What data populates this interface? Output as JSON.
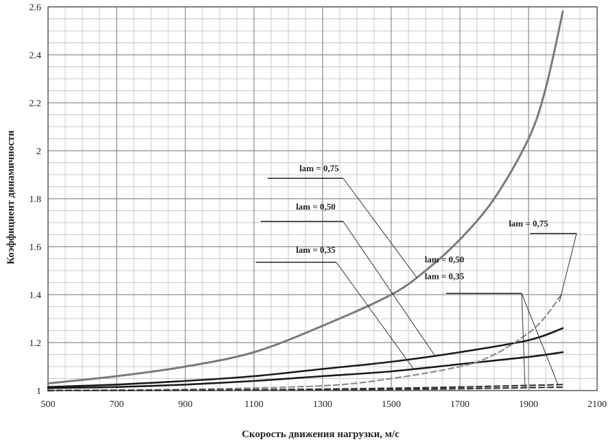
{
  "chart_data": {
    "type": "line",
    "title": "",
    "xlabel": "Скорость движения нагрузки, м/с",
    "ylabel": "Коэффициент динамичности",
    "xlim": [
      500,
      2100
    ],
    "ylim": [
      1,
      2.6
    ],
    "x_ticks": [
      500,
      700,
      900,
      1100,
      1300,
      1500,
      1700,
      1900,
      2100
    ],
    "y_ticks": [
      {
        "value": 1.0,
        "label": "1"
      },
      {
        "value": 1.2,
        "label": "1.2"
      },
      {
        "value": 1.4,
        "label": "1.4"
      },
      {
        "value": 1.6,
        "label": "1.6"
      },
      {
        "value": 1.8,
        "label": "1.8"
      },
      {
        "value": 2.0,
        "label": "2"
      },
      {
        "value": 2.2,
        "label": "2.2"
      },
      {
        "value": 2.4,
        "label": "2.4"
      },
      {
        "value": 2.6,
        "label": "2.6"
      }
    ],
    "grid": true,
    "x_minor_step": 50,
    "y_minor_step": 0.05,
    "colors": {
      "gray": "#7a7a7a",
      "black": "#1a1a1a",
      "dashed": "#8c8c8c",
      "grid": "#c8c8c8"
    },
    "series": [
      {
        "name": "lam = 0,75",
        "style": "solid-gray",
        "x": [
          500,
          700,
          900,
          1100,
          1300,
          1500,
          1600,
          1700,
          1800,
          1900,
          1950,
          2000
        ],
        "y": [
          1.03,
          1.06,
          1.1,
          1.16,
          1.27,
          1.4,
          1.5,
          1.63,
          1.8,
          2.05,
          2.26,
          2.58
        ]
      },
      {
        "name": "lam = 0,50",
        "style": "solid-black",
        "x": [
          500,
          700,
          900,
          1100,
          1300,
          1500,
          1700,
          1900,
          2000
        ],
        "y": [
          1.015,
          1.025,
          1.04,
          1.06,
          1.09,
          1.12,
          1.16,
          1.21,
          1.26
        ]
      },
      {
        "name": "lam = 0,35",
        "style": "solid-black",
        "x": [
          500,
          700,
          900,
          1100,
          1300,
          1500,
          1700,
          1900,
          2000
        ],
        "y": [
          1.01,
          1.015,
          1.025,
          1.04,
          1.06,
          1.08,
          1.11,
          1.14,
          1.16
        ]
      },
      {
        "name": "lam = 0,75",
        "style": "dashed-gray",
        "x": [
          500,
          900,
          1300,
          1500,
          1700,
          1800,
          1900,
          1950,
          2000
        ],
        "y": [
          1.0,
          1.005,
          1.02,
          1.05,
          1.1,
          1.15,
          1.24,
          1.31,
          1.41
        ]
      },
      {
        "name": "lam = 0,50",
        "style": "dashed-black",
        "x": [
          500,
          900,
          1300,
          1600,
          1800,
          2000
        ],
        "y": [
          1.0,
          1.002,
          1.006,
          1.012,
          1.018,
          1.025
        ]
      },
      {
        "name": "lam = 0,35",
        "style": "dashed-black",
        "x": [
          500,
          900,
          1300,
          1600,
          1800,
          2000
        ],
        "y": [
          1.0,
          1.001,
          1.003,
          1.006,
          1.01,
          1.014
        ]
      }
    ],
    "annotations": [
      {
        "text": "lam = 0,75",
        "label_at": [
          1290,
          1.915
        ],
        "shelf_x": [
          1140,
          1360
        ],
        "shelf_y": 1.885,
        "leader_to": [
          1575,
          1.47
        ]
      },
      {
        "text": "lam = 0,50",
        "label_at": [
          1280,
          1.755
        ],
        "shelf_x": [
          1120,
          1360
        ],
        "shelf_y": 1.705,
        "leader_to": [
          1625,
          1.15
        ]
      },
      {
        "text": "lam = 0,35",
        "label_at": [
          1280,
          1.575
        ],
        "shelf_x": [
          1105,
          1340
        ],
        "shelf_y": 1.535,
        "leader_to": [
          1565,
          1.09
        ]
      },
      {
        "text": "lam = 0,75",
        "label_at": [
          1900,
          1.685
        ],
        "shelf_x": [
          1904,
          2040
        ],
        "shelf_y": 1.655,
        "leader_to": [
          1990,
          1.37
        ]
      },
      {
        "text": "lam = 0,50",
        "label_at": [
          1655,
          1.535
        ],
        "shelf_x": [
          1660,
          1880
        ],
        "shelf_y": 1.405,
        "leader_to": [
          1985,
          1.028
        ]
      },
      {
        "text": "lam = 0,35",
        "label_at": [
          1655,
          1.465
        ],
        "shelf_x": [
          1660,
          1880
        ],
        "shelf_y": 1.405,
        "leader_to": [
          1890,
          1.012
        ]
      }
    ]
  }
}
